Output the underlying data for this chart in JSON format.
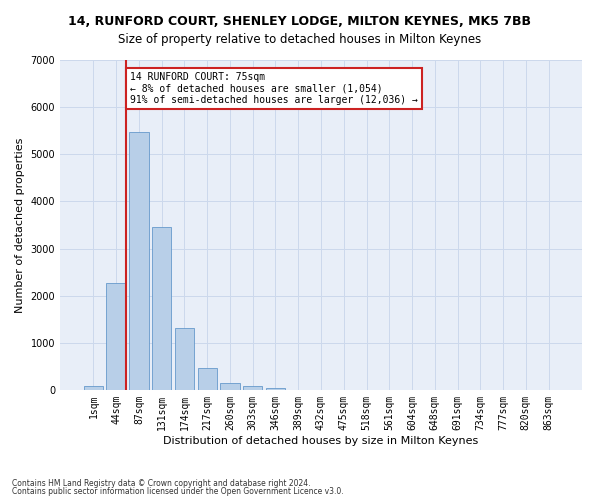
{
  "title_line1": "14, RUNFORD COURT, SHENLEY LODGE, MILTON KEYNES, MK5 7BB",
  "title_line2": "Size of property relative to detached houses in Milton Keynes",
  "xlabel": "Distribution of detached houses by size in Milton Keynes",
  "ylabel": "Number of detached properties",
  "footer_line1": "Contains HM Land Registry data © Crown copyright and database right 2024.",
  "footer_line2": "Contains public sector information licensed under the Open Government Licence v3.0.",
  "annotation_title": "14 RUNFORD COURT: 75sqm",
  "annotation_line1": "← 8% of detached houses are smaller (1,054)",
  "annotation_line2": "91% of semi-detached houses are larger (12,036) →",
  "bar_color": "#b8cfe8",
  "bar_edge_color": "#6699cc",
  "highlight_color": "#cc2222",
  "ylim": [
    0,
    7000
  ],
  "yticks": [
    0,
    1000,
    2000,
    3000,
    4000,
    5000,
    6000,
    7000
  ],
  "categories": [
    "1sqm",
    "44sqm",
    "87sqm",
    "131sqm",
    "174sqm",
    "217sqm",
    "260sqm",
    "303sqm",
    "346sqm",
    "389sqm",
    "432sqm",
    "475sqm",
    "518sqm",
    "561sqm",
    "604sqm",
    "648sqm",
    "691sqm",
    "734sqm",
    "777sqm",
    "820sqm",
    "863sqm"
  ],
  "values": [
    80,
    2280,
    5470,
    3450,
    1320,
    470,
    155,
    80,
    50,
    0,
    0,
    0,
    0,
    0,
    0,
    0,
    0,
    0,
    0,
    0,
    0
  ],
  "grid_color": "#ccd8ec",
  "bg_color": "#e8eef8",
  "title1_fontsize": 9,
  "title2_fontsize": 8.5,
  "xlabel_fontsize": 8,
  "ylabel_fontsize": 8,
  "tick_fontsize": 7,
  "footer_fontsize": 5.5,
  "annotation_fontsize": 7,
  "vline_x": 1.5
}
